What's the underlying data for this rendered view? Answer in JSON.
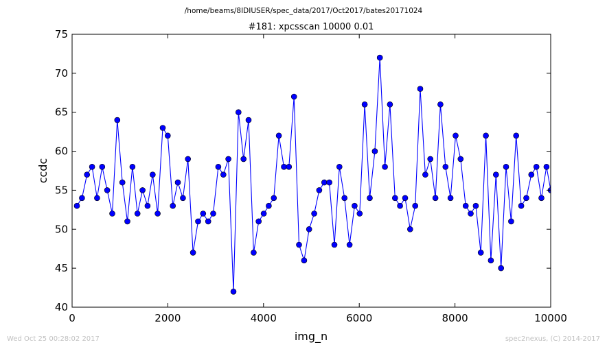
{
  "header": {
    "path": "/home/beams/8IDIUSER/spec_data/2017/Oct2017/bates20171024"
  },
  "footer": {
    "timestamp": "Wed Oct 25 00:28:02 2017",
    "credit": "spec2nexus, (C) 2014-2017"
  },
  "chart_data": {
    "type": "line",
    "title": "#181: xpcsscan 10000 0.01",
    "xlabel": "img_n",
    "ylabel": "ccdc",
    "xlim": [
      0,
      10000
    ],
    "ylim": [
      40,
      75
    ],
    "xticks": [
      "0",
      "2000",
      "4000",
      "6000",
      "8000",
      "10000"
    ],
    "yticks": [
      "40",
      "45",
      "50",
      "55",
      "60",
      "65",
      "70",
      "75"
    ],
    "grid": false,
    "line_color": "#0000ff",
    "marker": "circle",
    "series": [
      {
        "x": [
          100,
          206,
          311,
          417,
          522,
          628,
          733,
          839,
          944,
          1050,
          1155,
          1261,
          1366,
          1472,
          1577,
          1683,
          1788,
          1894,
          1999,
          2105,
          2210,
          2316,
          2421,
          2527,
          2632,
          2738,
          2843,
          2949,
          3054,
          3160,
          3265,
          3371,
          3476,
          3582,
          3687,
          3793,
          3898,
          4004,
          4109,
          4215,
          4320,
          4426,
          4531,
          4637,
          4742,
          4848,
          4953,
          5059,
          5164,
          5270,
          5375,
          5481,
          5586,
          5692,
          5797,
          5903,
          6008,
          6114,
          6219,
          6325,
          6430,
          6536,
          6641,
          6747,
          6852,
          6958,
          7063,
          7169,
          7274,
          7380,
          7485,
          7591,
          7696,
          7802,
          7907,
          8013,
          8118,
          8224,
          8329,
          8435,
          8540,
          8646,
          8751,
          8857,
          8962,
          9068,
          9173,
          9279,
          9384,
          9490,
          9595,
          9701,
          9806,
          9912,
          10000
        ],
        "values": [
          53,
          54,
          57,
          58,
          54,
          58,
          55,
          52,
          64,
          56,
          51,
          58,
          52,
          55,
          53,
          57,
          52,
          63,
          62,
          53,
          56,
          54,
          59,
          47,
          51,
          52,
          51,
          52,
          58,
          57,
          59,
          42,
          65,
          59,
          64,
          47,
          51,
          52,
          53,
          54,
          62,
          58,
          58,
          67,
          48,
          46,
          50,
          52,
          55,
          56,
          56,
          48,
          58,
          54,
          48,
          53,
          52,
          66,
          54,
          60,
          72,
          58,
          66,
          54,
          53,
          54,
          50,
          53,
          68,
          57,
          59,
          54,
          66,
          58,
          54,
          62,
          59,
          53,
          52,
          53,
          47,
          62,
          46,
          57,
          45,
          58,
          51,
          62,
          53,
          54,
          57,
          58,
          54,
          58,
          55
        ]
      }
    ]
  }
}
